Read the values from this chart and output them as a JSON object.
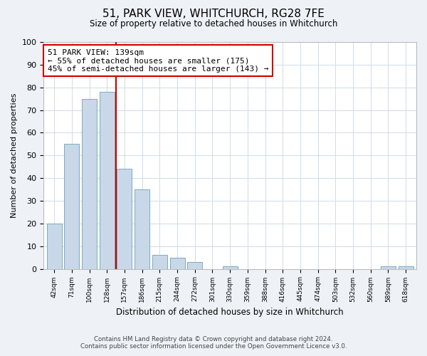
{
  "title": "51, PARK VIEW, WHITCHURCH, RG28 7FE",
  "subtitle": "Size of property relative to detached houses in Whitchurch",
  "xlabel": "Distribution of detached houses by size in Whitchurch",
  "ylabel": "Number of detached properties",
  "bar_labels": [
    "42sqm",
    "71sqm",
    "100sqm",
    "128sqm",
    "157sqm",
    "186sqm",
    "215sqm",
    "244sqm",
    "272sqm",
    "301sqm",
    "330sqm",
    "359sqm",
    "388sqm",
    "416sqm",
    "445sqm",
    "474sqm",
    "503sqm",
    "532sqm",
    "560sqm",
    "589sqm",
    "618sqm"
  ],
  "bar_values": [
    20,
    55,
    75,
    78,
    44,
    35,
    6,
    5,
    3,
    0,
    1,
    0,
    0,
    0,
    0,
    0,
    0,
    0,
    0,
    1,
    1
  ],
  "bar_color": "#c8d8e8",
  "bar_edge_color": "#7aaabf",
  "annotation_line1": "51 PARK VIEW: 139sqm",
  "annotation_line2": "← 55% of detached houses are smaller (175)",
  "annotation_line3": "45% of semi-detached houses are larger (143) →",
  "annotation_box_edge": "#cc0000",
  "vline_color": "#cc0000",
  "vline_x": 3.5,
  "ylim": [
    0,
    100
  ],
  "yticks": [
    0,
    10,
    20,
    30,
    40,
    50,
    60,
    70,
    80,
    90,
    100
  ],
  "footer_line1": "Contains HM Land Registry data © Crown copyright and database right 2024.",
  "footer_line2": "Contains public sector information licensed under the Open Government Licence v3.0.",
  "bg_color": "#eef2f7",
  "plot_bg_color": "#ffffff",
  "grid_color": "#d0dce8"
}
